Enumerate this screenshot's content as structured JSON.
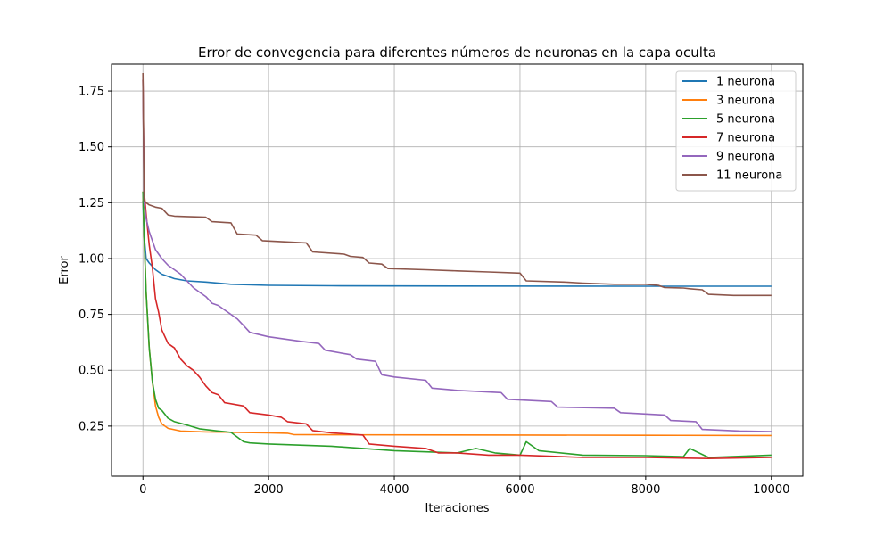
{
  "chart_data": {
    "type": "line",
    "title": "Error de convegencia para diferentes números de neuronas en la capa oculta",
    "xlabel": "Iteraciones",
    "ylabel": "Error",
    "xlim": [
      -500,
      10500
    ],
    "ylim": [
      0.026,
      1.87
    ],
    "x_ticks": [
      0,
      2000,
      4000,
      6000,
      8000,
      10000
    ],
    "x_tick_labels": [
      "0",
      "2000",
      "4000",
      "6000",
      "8000",
      "10000"
    ],
    "y_ticks": [
      0.25,
      0.5,
      0.75,
      1.0,
      1.25,
      1.5,
      1.75
    ],
    "y_tick_labels": [
      "0.25",
      "0.50",
      "0.75",
      "1.00",
      "1.25",
      "1.50",
      "1.75"
    ],
    "grid": true,
    "legend_position": "top-right",
    "series": [
      {
        "name": "1 neurona",
        "color": "#1f77b4",
        "x": [
          0,
          20,
          50,
          100,
          200,
          300,
          500,
          700,
          1000,
          1400,
          2000,
          3000,
          5000,
          8000,
          10000
        ],
        "y": [
          1.26,
          1.1,
          1.0,
          0.98,
          0.95,
          0.93,
          0.91,
          0.9,
          0.895,
          0.885,
          0.88,
          0.878,
          0.877,
          0.876,
          0.876
        ]
      },
      {
        "name": "3 neurona",
        "color": "#ff7f0e",
        "x": [
          0,
          20,
          50,
          100,
          150,
          200,
          250,
          300,
          400,
          600,
          1000,
          1500,
          2000,
          2300,
          2400,
          3000,
          6000,
          8000,
          10000
        ],
        "y": [
          1.3,
          1.1,
          0.85,
          0.6,
          0.45,
          0.34,
          0.29,
          0.26,
          0.24,
          0.228,
          0.224,
          0.222,
          0.22,
          0.218,
          0.212,
          0.211,
          0.21,
          0.209,
          0.208
        ]
      },
      {
        "name": "5 neurona",
        "color": "#2ca02c",
        "x": [
          0,
          20,
          50,
          100,
          150,
          200,
          250,
          300,
          400,
          500,
          700,
          900,
          1200,
          1400,
          1600,
          1700,
          2000,
          3000,
          4000,
          5000,
          5300,
          5600,
          6000,
          6100,
          6300,
          7000,
          8000,
          8600,
          8700,
          9000,
          10000
        ],
        "y": [
          1.3,
          1.1,
          0.85,
          0.6,
          0.45,
          0.37,
          0.33,
          0.32,
          0.285,
          0.27,
          0.255,
          0.238,
          0.228,
          0.222,
          0.18,
          0.175,
          0.17,
          0.16,
          0.14,
          0.13,
          0.15,
          0.13,
          0.12,
          0.18,
          0.14,
          0.12,
          0.118,
          0.113,
          0.15,
          0.11,
          0.12
        ]
      },
      {
        "name": "7 neurona",
        "color": "#d62728",
        "x": [
          0,
          20,
          50,
          100,
          150,
          200,
          250,
          300,
          400,
          500,
          600,
          700,
          800,
          900,
          1000,
          1100,
          1200,
          1300,
          1600,
          1700,
          2000,
          2200,
          2300,
          2600,
          2700,
          3000,
          3500,
          3600,
          4000,
          4500,
          4700,
          5000,
          5500,
          6000,
          6500,
          7000,
          8000,
          9000,
          10000
        ],
        "y": [
          1.8,
          1.3,
          1.2,
          1.06,
          0.96,
          0.82,
          0.76,
          0.68,
          0.62,
          0.6,
          0.55,
          0.52,
          0.5,
          0.47,
          0.43,
          0.4,
          0.39,
          0.355,
          0.34,
          0.31,
          0.3,
          0.29,
          0.27,
          0.26,
          0.23,
          0.22,
          0.21,
          0.17,
          0.16,
          0.15,
          0.13,
          0.13,
          0.12,
          0.12,
          0.115,
          0.11,
          0.11,
          0.105,
          0.11
        ]
      },
      {
        "name": "9 neurona",
        "color": "#9467bd",
        "x": [
          0,
          20,
          50,
          100,
          200,
          300,
          400,
          500,
          600,
          700,
          800,
          900,
          1000,
          1100,
          1200,
          1300,
          1400,
          1500,
          1600,
          1700,
          2000,
          2500,
          2800,
          2900,
          3300,
          3400,
          3700,
          3800,
          4000,
          4500,
          4600,
          5000,
          5700,
          5800,
          6500,
          6600,
          7500,
          7600,
          8300,
          8400,
          8800,
          8900,
          9500,
          10000
        ],
        "y": [
          1.8,
          1.25,
          1.18,
          1.12,
          1.04,
          1.0,
          0.97,
          0.95,
          0.93,
          0.9,
          0.87,
          0.85,
          0.83,
          0.8,
          0.79,
          0.77,
          0.75,
          0.73,
          0.7,
          0.67,
          0.65,
          0.63,
          0.62,
          0.59,
          0.57,
          0.55,
          0.54,
          0.48,
          0.47,
          0.455,
          0.42,
          0.41,
          0.4,
          0.37,
          0.36,
          0.335,
          0.33,
          0.31,
          0.3,
          0.275,
          0.27,
          0.235,
          0.228,
          0.225
        ]
      },
      {
        "name": "11 neurona",
        "color": "#8c564b",
        "x": [
          0,
          20,
          50,
          100,
          200,
          300,
          400,
          500,
          700,
          1000,
          1100,
          1400,
          1500,
          1800,
          1900,
          2600,
          2700,
          3200,
          3300,
          3500,
          3600,
          3800,
          3900,
          4500,
          5000,
          5500,
          6000,
          6100,
          6700,
          7000,
          7500,
          8000,
          8200,
          8300,
          8600,
          8700,
          8900,
          9000,
          9400,
          10000
        ],
        "y": [
          1.83,
          1.26,
          1.25,
          1.24,
          1.23,
          1.225,
          1.195,
          1.19,
          1.188,
          1.185,
          1.165,
          1.16,
          1.11,
          1.105,
          1.08,
          1.07,
          1.03,
          1.02,
          1.01,
          1.005,
          0.98,
          0.975,
          0.955,
          0.95,
          0.945,
          0.94,
          0.935,
          0.9,
          0.895,
          0.89,
          0.885,
          0.885,
          0.88,
          0.87,
          0.868,
          0.865,
          0.86,
          0.84,
          0.835,
          0.835
        ]
      }
    ]
  }
}
